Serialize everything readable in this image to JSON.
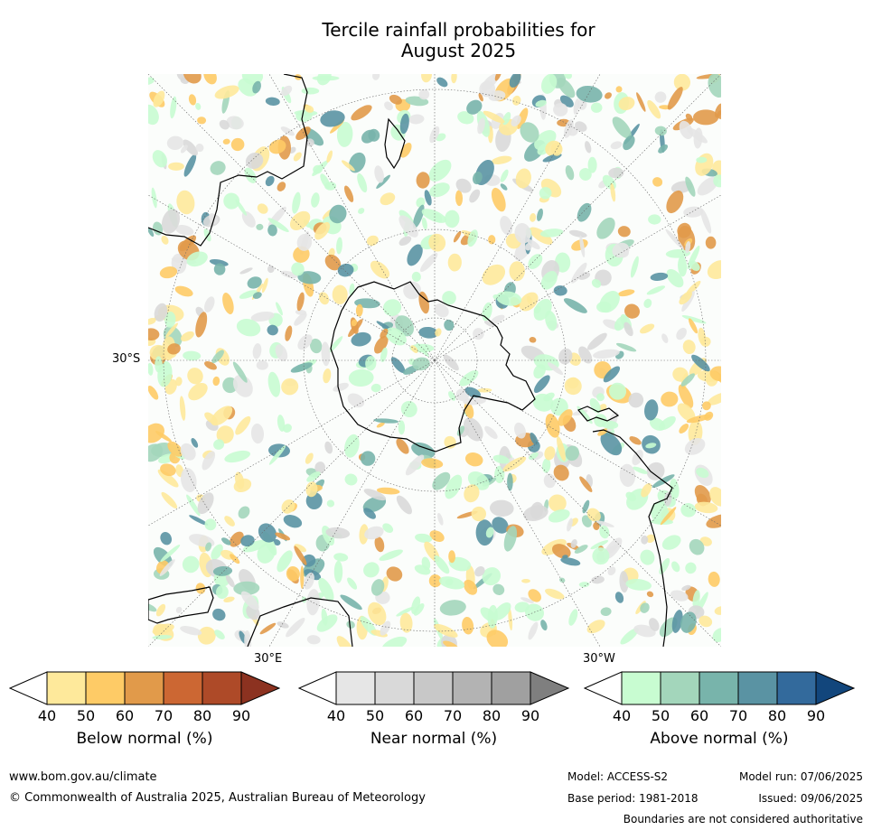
{
  "title": {
    "line1": "Tercile rainfall probabilities for",
    "line2": "August 2025"
  },
  "map": {
    "lat_label": "30°S",
    "lon_labels": {
      "east": "30°E",
      "west": "30°W"
    }
  },
  "colorbars": [
    {
      "name": "Below normal (%)",
      "ticks": [
        "40",
        "50",
        "60",
        "70",
        "80",
        "90"
      ],
      "colors": [
        "#ffffff",
        "#fee99b",
        "#fecb66",
        "#e19a4a",
        "#cc6733",
        "#ae4a28",
        "#8c3220"
      ]
    },
    {
      "name": "Near normal (%)",
      "ticks": [
        "40",
        "50",
        "60",
        "70",
        "80",
        "90"
      ],
      "colors": [
        "#ffffff",
        "#e6e6e6",
        "#d9d9d9",
        "#c8c8c8",
        "#b3b3b3",
        "#a0a0a0",
        "#7f7f7f"
      ]
    },
    {
      "name": "Above normal (%)",
      "ticks": [
        "40",
        "50",
        "60",
        "70",
        "80",
        "90"
      ],
      "colors": [
        "#ffffff",
        "#c8fcd1",
        "#a3d6bb",
        "#78b4ab",
        "#5a93a3",
        "#336a9c",
        "#12467c"
      ]
    }
  ],
  "footer": {
    "url": "www.bom.gov.au/climate",
    "copyright": "© Commonwealth of Australia 2025, Australian Bureau of Meteorology",
    "model": "Model: ACCESS-S2",
    "model_run": "Model run: 07/06/2025",
    "base_period": "Base period: 1981-2018",
    "issued": "Issued: 09/06/2025",
    "disclaimer": "Boundaries are not considered authoritative"
  }
}
